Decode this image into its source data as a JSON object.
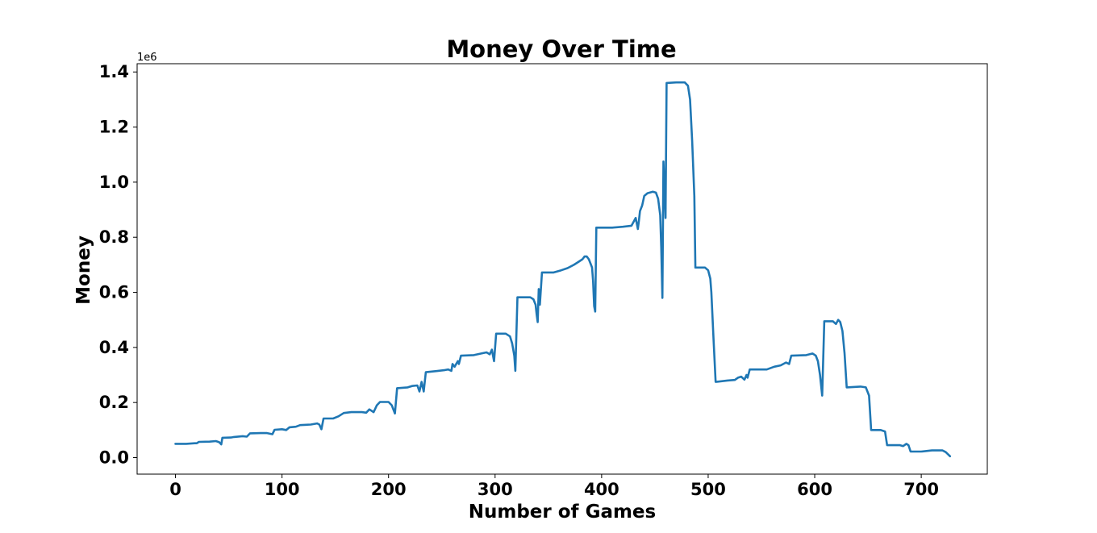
{
  "chart_data": {
    "type": "line",
    "title": "Money Over Time",
    "xlabel": "Number of Games",
    "ylabel": "Money",
    "y_offset_label": "1e6",
    "y_scale": 1000000,
    "xlim": [
      -36,
      762
    ],
    "ylim": [
      -60000,
      1430000
    ],
    "x_ticks": [
      0,
      100,
      200,
      300,
      400,
      500,
      600,
      700
    ],
    "x_tick_labels": [
      "0",
      "100",
      "200",
      "300",
      "400",
      "500",
      "600",
      "700"
    ],
    "y_ticks": [
      0,
      200000,
      400000,
      600000,
      800000,
      1000000,
      1200000,
      1400000
    ],
    "y_tick_labels": [
      "0.0",
      "0.2",
      "0.4",
      "0.6",
      "0.8",
      "1.0",
      "1.2",
      "1.4"
    ],
    "grid": false,
    "line_color": "#1f77b4",
    "series": [
      {
        "points": [
          [
            0,
            50000
          ],
          [
            10,
            50000
          ],
          [
            18,
            52000
          ],
          [
            20,
            52000
          ],
          [
            22,
            57000
          ],
          [
            32,
            58000
          ],
          [
            38,
            60000
          ],
          [
            41,
            56000
          ],
          [
            43,
            48000
          ],
          [
            44,
            72000
          ],
          [
            52,
            73000
          ],
          [
            55,
            75000
          ],
          [
            63,
            78000
          ],
          [
            67,
            76000
          ],
          [
            70,
            88000
          ],
          [
            80,
            89000
          ],
          [
            86,
            89000
          ],
          [
            91,
            85000
          ],
          [
            93,
            101000
          ],
          [
            100,
            103000
          ],
          [
            104,
            100000
          ],
          [
            107,
            110000
          ],
          [
            113,
            112000
          ],
          [
            117,
            118000
          ],
          [
            127,
            120000
          ],
          [
            133,
            124000
          ],
          [
            135,
            120000
          ],
          [
            137,
            103000
          ],
          [
            139,
            142000
          ],
          [
            148,
            142000
          ],
          [
            153,
            150000
          ],
          [
            158,
            162000
          ],
          [
            165,
            165000
          ],
          [
            175,
            165000
          ],
          [
            179,
            163000
          ],
          [
            182,
            175000
          ],
          [
            186,
            165000
          ],
          [
            189,
            190000
          ],
          [
            192,
            202000
          ],
          [
            200,
            202000
          ],
          [
            203,
            190000
          ],
          [
            206,
            160000
          ],
          [
            208,
            252000
          ],
          [
            218,
            255000
          ],
          [
            222,
            260000
          ],
          [
            227,
            262000
          ],
          [
            229,
            240000
          ],
          [
            231,
            275000
          ],
          [
            233,
            240000
          ],
          [
            235,
            310000
          ],
          [
            245,
            314000
          ],
          [
            253,
            318000
          ],
          [
            256,
            320000
          ],
          [
            259,
            315000
          ],
          [
            260,
            340000
          ],
          [
            262,
            330000
          ],
          [
            265,
            350000
          ],
          [
            266,
            340000
          ],
          [
            268,
            370000
          ],
          [
            280,
            372000
          ],
          [
            287,
            378000
          ],
          [
            292,
            382000
          ],
          [
            295,
            375000
          ],
          [
            297,
            392000
          ],
          [
            299,
            350000
          ],
          [
            301,
            450000
          ],
          [
            310,
            450000
          ],
          [
            314,
            440000
          ],
          [
            316,
            415000
          ],
          [
            318,
            370000
          ],
          [
            319,
            315000
          ],
          [
            321,
            582000
          ],
          [
            333,
            582000
          ],
          [
            336,
            575000
          ],
          [
            338,
            555000
          ],
          [
            339,
            520000
          ],
          [
            340,
            492000
          ],
          [
            341,
            612000
          ],
          [
            342,
            555000
          ],
          [
            344,
            672000
          ],
          [
            355,
            672000
          ],
          [
            362,
            680000
          ],
          [
            368,
            688000
          ],
          [
            374,
            700000
          ],
          [
            378,
            710000
          ],
          [
            382,
            720000
          ],
          [
            384,
            730000
          ],
          [
            386,
            730000
          ],
          [
            388,
            720000
          ],
          [
            390,
            700000
          ],
          [
            391,
            690000
          ],
          [
            392,
            640000
          ],
          [
            393,
            550000
          ],
          [
            394,
            530000
          ],
          [
            395,
            835000
          ],
          [
            410,
            835000
          ],
          [
            420,
            838000
          ],
          [
            428,
            842000
          ],
          [
            432,
            870000
          ],
          [
            434,
            830000
          ],
          [
            435,
            860000
          ],
          [
            436,
            895000
          ],
          [
            438,
            915000
          ],
          [
            440,
            950000
          ],
          [
            443,
            960000
          ],
          [
            448,
            965000
          ],
          [
            451,
            962000
          ],
          [
            453,
            940000
          ],
          [
            455,
            880000
          ],
          [
            456,
            760000
          ],
          [
            457,
            580000
          ],
          [
            458,
            1075000
          ],
          [
            460,
            870000
          ],
          [
            461,
            1360000
          ],
          [
            470,
            1362000
          ],
          [
            478,
            1362000
          ],
          [
            481,
            1350000
          ],
          [
            483,
            1300000
          ],
          [
            485,
            1150000
          ],
          [
            487,
            950000
          ],
          [
            488,
            690000
          ],
          [
            497,
            690000
          ],
          [
            500,
            680000
          ],
          [
            502,
            650000
          ],
          [
            503,
            600000
          ],
          [
            505,
            430000
          ],
          [
            507,
            275000
          ],
          [
            518,
            280000
          ],
          [
            525,
            282000
          ],
          [
            528,
            290000
          ],
          [
            531,
            294000
          ],
          [
            534,
            283000
          ],
          [
            536,
            300000
          ],
          [
            537,
            290000
          ],
          [
            539,
            320000
          ],
          [
            555,
            320000
          ],
          [
            562,
            330000
          ],
          [
            568,
            335000
          ],
          [
            573,
            345000
          ],
          [
            576,
            340000
          ],
          [
            578,
            370000
          ],
          [
            592,
            372000
          ],
          [
            598,
            378000
          ],
          [
            601,
            370000
          ],
          [
            603,
            350000
          ],
          [
            605,
            300000
          ],
          [
            607,
            225000
          ],
          [
            609,
            495000
          ],
          [
            617,
            495000
          ],
          [
            620,
            485000
          ],
          [
            622,
            500000
          ],
          [
            624,
            492000
          ],
          [
            626,
            460000
          ],
          [
            628,
            380000
          ],
          [
            630,
            255000
          ],
          [
            643,
            258000
          ],
          [
            648,
            255000
          ],
          [
            651,
            225000
          ],
          [
            653,
            100000
          ],
          [
            662,
            100000
          ],
          [
            666,
            95000
          ],
          [
            668,
            45000
          ],
          [
            680,
            45000
          ],
          [
            683,
            42000
          ],
          [
            686,
            50000
          ],
          [
            688,
            45000
          ],
          [
            690,
            22000
          ],
          [
            700,
            22000
          ],
          [
            710,
            26000
          ],
          [
            720,
            26000
          ],
          [
            723,
            20000
          ],
          [
            727,
            5000
          ]
        ]
      }
    ]
  }
}
